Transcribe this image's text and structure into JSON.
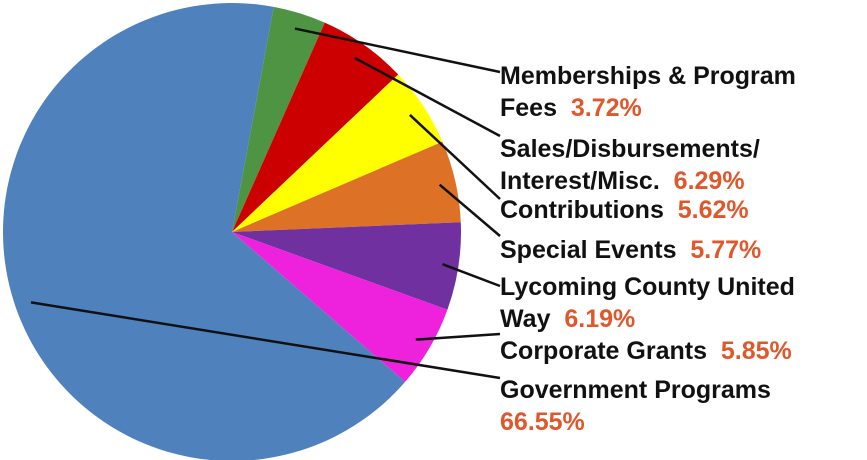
{
  "chart_data": {
    "type": "pie",
    "title": "",
    "slices": [
      {
        "label_lines": [
          "Memberships & Program",
          "Fees"
        ],
        "value": 3.72,
        "pct_label": "3.72%",
        "color": "#4f9443"
      },
      {
        "label_lines": [
          "Sales/Disbursements/",
          "Interest/Misc."
        ],
        "value": 6.29,
        "pct_label": "6.29%",
        "color": "#cc0000"
      },
      {
        "label_lines": [
          "Contributions"
        ],
        "value": 5.62,
        "pct_label": "5.62%",
        "color": "#ffff00"
      },
      {
        "label_lines": [
          "Special Events"
        ],
        "value": 5.77,
        "pct_label": "5.77%",
        "color": "#dd7227"
      },
      {
        "label_lines": [
          "Lycoming County United",
          "Way"
        ],
        "value": 6.19,
        "pct_label": "6.19%",
        "color": "#7030a0"
      },
      {
        "label_lines": [
          "Corporate Grants"
        ],
        "value": 5.85,
        "pct_label": "5.85%",
        "color": "#ee22dd"
      },
      {
        "label_lines": [
          "Government Programs"
        ],
        "value": 66.55,
        "pct_label": "66.55%",
        "pct_on_new_line": true,
        "color": "#4f81bd"
      }
    ],
    "start": "12 o'clock",
    "direction": "clockwise from the Memberships slice, Government Programs wrapping back to top",
    "label_text_color": "#111111",
    "percent_text_color": "#e0572b"
  }
}
